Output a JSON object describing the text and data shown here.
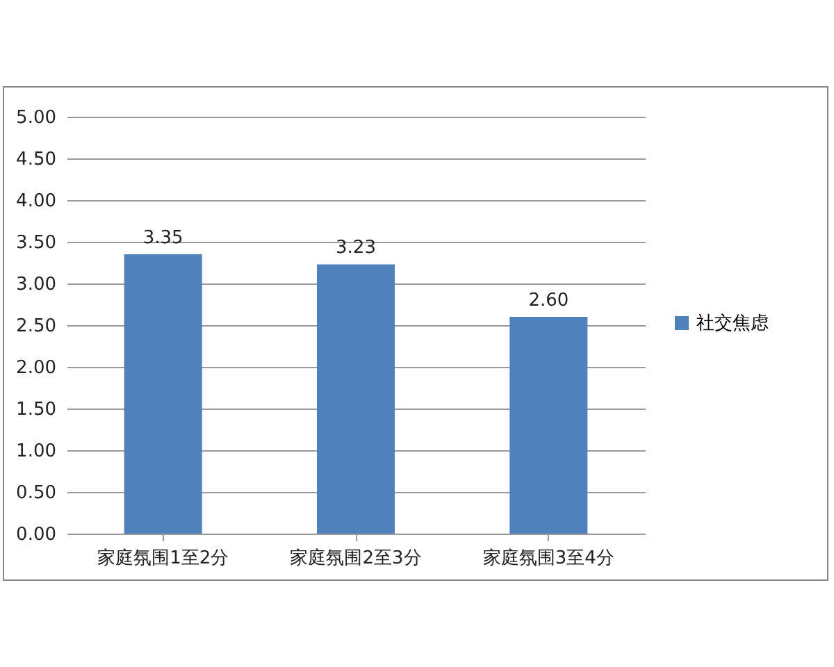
{
  "chart_data": {
    "type": "bar",
    "categories": [
      "家庭氛围1至2分",
      "家庭氛围2至3分",
      "家庭氛围3至4分"
    ],
    "series": [
      {
        "name": "社交焦虑",
        "color": "#4f81bd",
        "values": [
          3.35,
          3.23,
          2.6
        ],
        "value_labels": [
          "3.35",
          "3.23",
          "2.60"
        ]
      }
    ],
    "ylim": [
      0,
      5
    ],
    "yticks": [
      {
        "value": 0,
        "label": "0.00"
      },
      {
        "value": 0.5,
        "label": "0.50"
      },
      {
        "value": 1,
        "label": "1.00"
      },
      {
        "value": 1.5,
        "label": "1.50"
      },
      {
        "value": 2,
        "label": "2.00"
      },
      {
        "value": 2.5,
        "label": "2.50"
      },
      {
        "value": 3,
        "label": "3.00"
      },
      {
        "value": 3.5,
        "label": "3.50"
      },
      {
        "value": 4,
        "label": "4.00"
      },
      {
        "value": 4.5,
        "label": "4.50"
      },
      {
        "value": 5,
        "label": "5.00"
      }
    ],
    "grid": "y",
    "legend": "right"
  }
}
